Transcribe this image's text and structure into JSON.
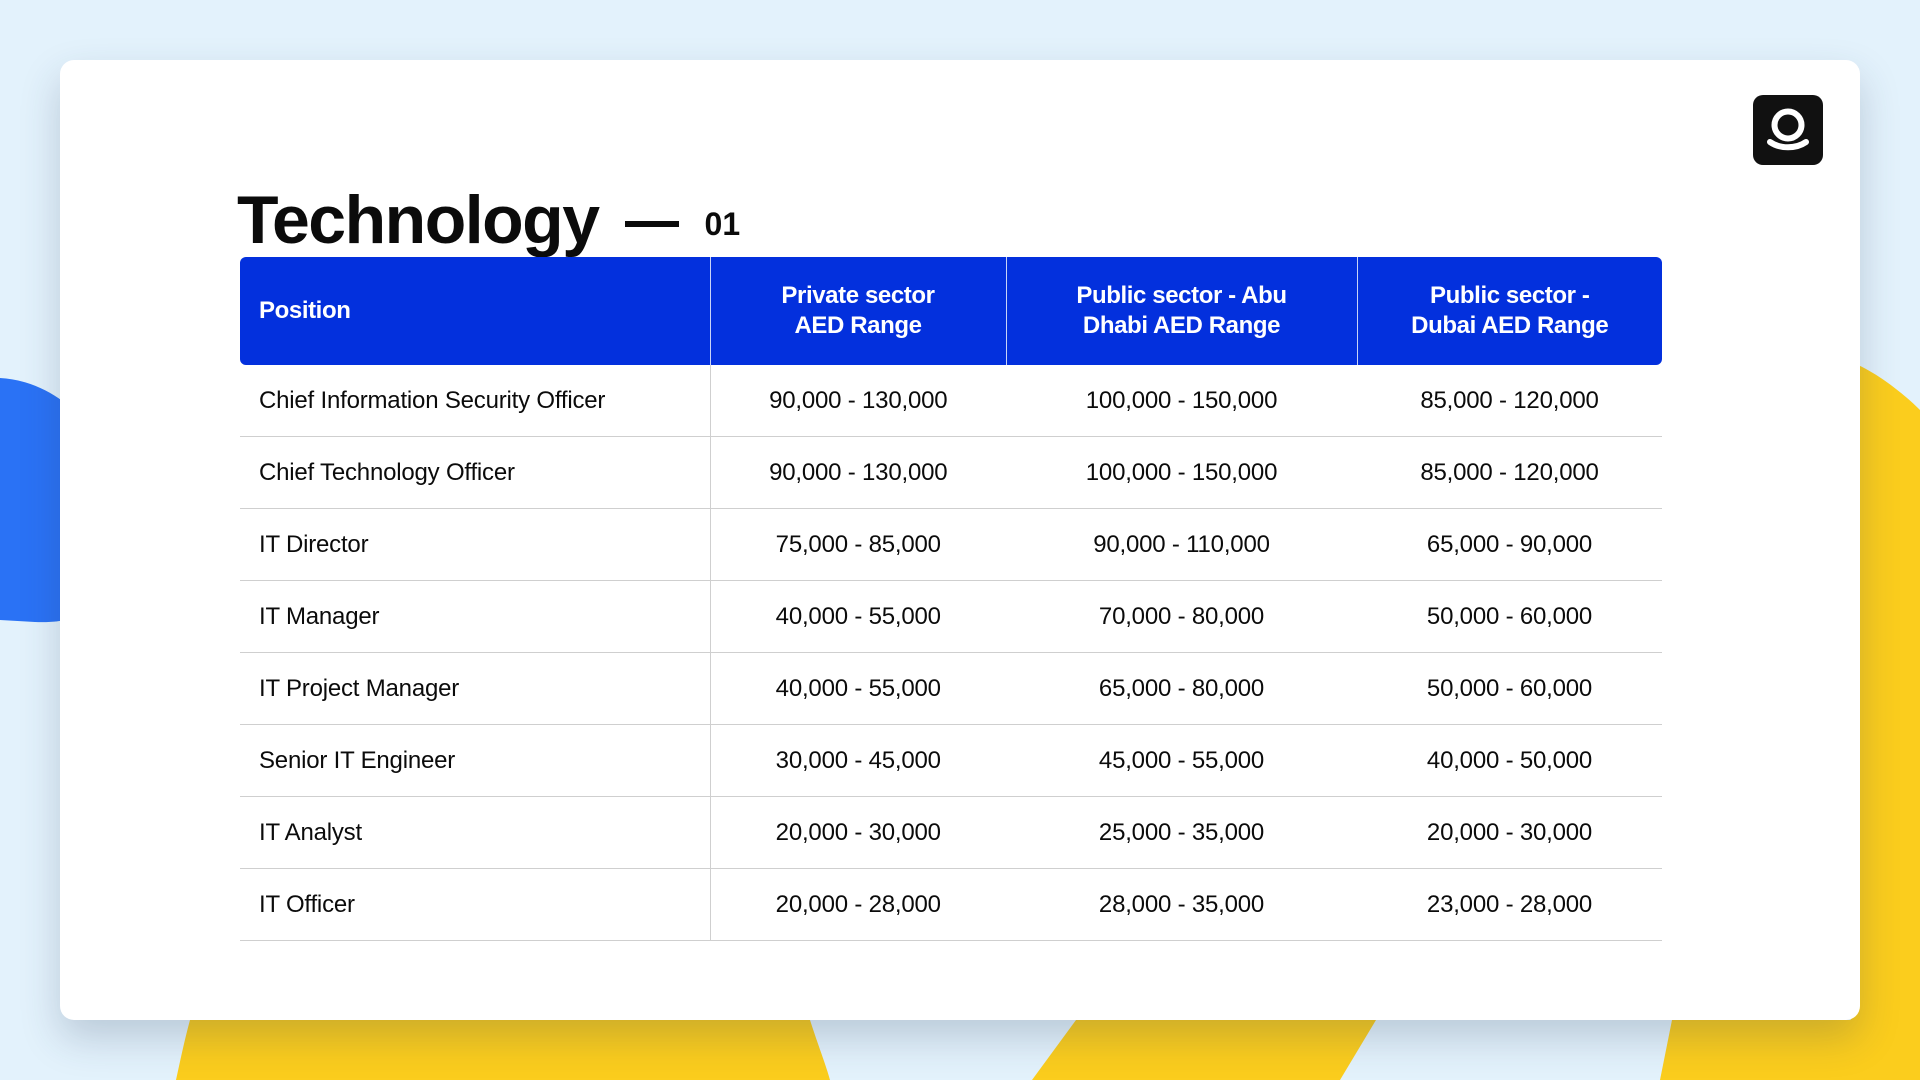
{
  "header": {
    "title": "Technology",
    "page_number": "01",
    "logo_icon": "q-logo-icon"
  },
  "colors": {
    "background": "#e3f2fc",
    "header_blue": "#0330dd",
    "blob_blue": "#2a72f5",
    "accent_yellow": "#fbcd1d"
  },
  "table": {
    "headers": [
      [
        "Position"
      ],
      [
        "Private sector",
        "AED Range"
      ],
      [
        "Public sector - Abu",
        "Dhabi AED Range"
      ],
      [
        "Public sector -",
        "Dubai AED Range"
      ]
    ],
    "rows": [
      [
        "Chief Information Security Officer",
        "90,000 - 130,000",
        "100,000 - 150,000",
        "85,000 - 120,000"
      ],
      [
        "Chief Technology Officer",
        "90,000 - 130,000",
        "100,000 - 150,000",
        "85,000 - 120,000"
      ],
      [
        "IT Director",
        "75,000 - 85,000",
        "90,000 - 110,000",
        "65,000 - 90,000"
      ],
      [
        "IT Manager",
        "40,000 - 55,000",
        "70,000 - 80,000",
        "50,000 - 60,000"
      ],
      [
        "IT Project Manager",
        "40,000 - 55,000",
        "65,000 - 80,000",
        "50,000 - 60,000"
      ],
      [
        "Senior IT Engineer",
        "30,000 - 45,000",
        "45,000 - 55,000",
        "40,000 - 50,000"
      ],
      [
        "IT Analyst",
        "20,000 - 30,000",
        "25,000 - 35,000",
        "20,000 - 30,000"
      ],
      [
        "IT Officer",
        "20,000 - 28,000",
        "28,000 - 35,000",
        "23,000 - 28,000"
      ]
    ]
  }
}
